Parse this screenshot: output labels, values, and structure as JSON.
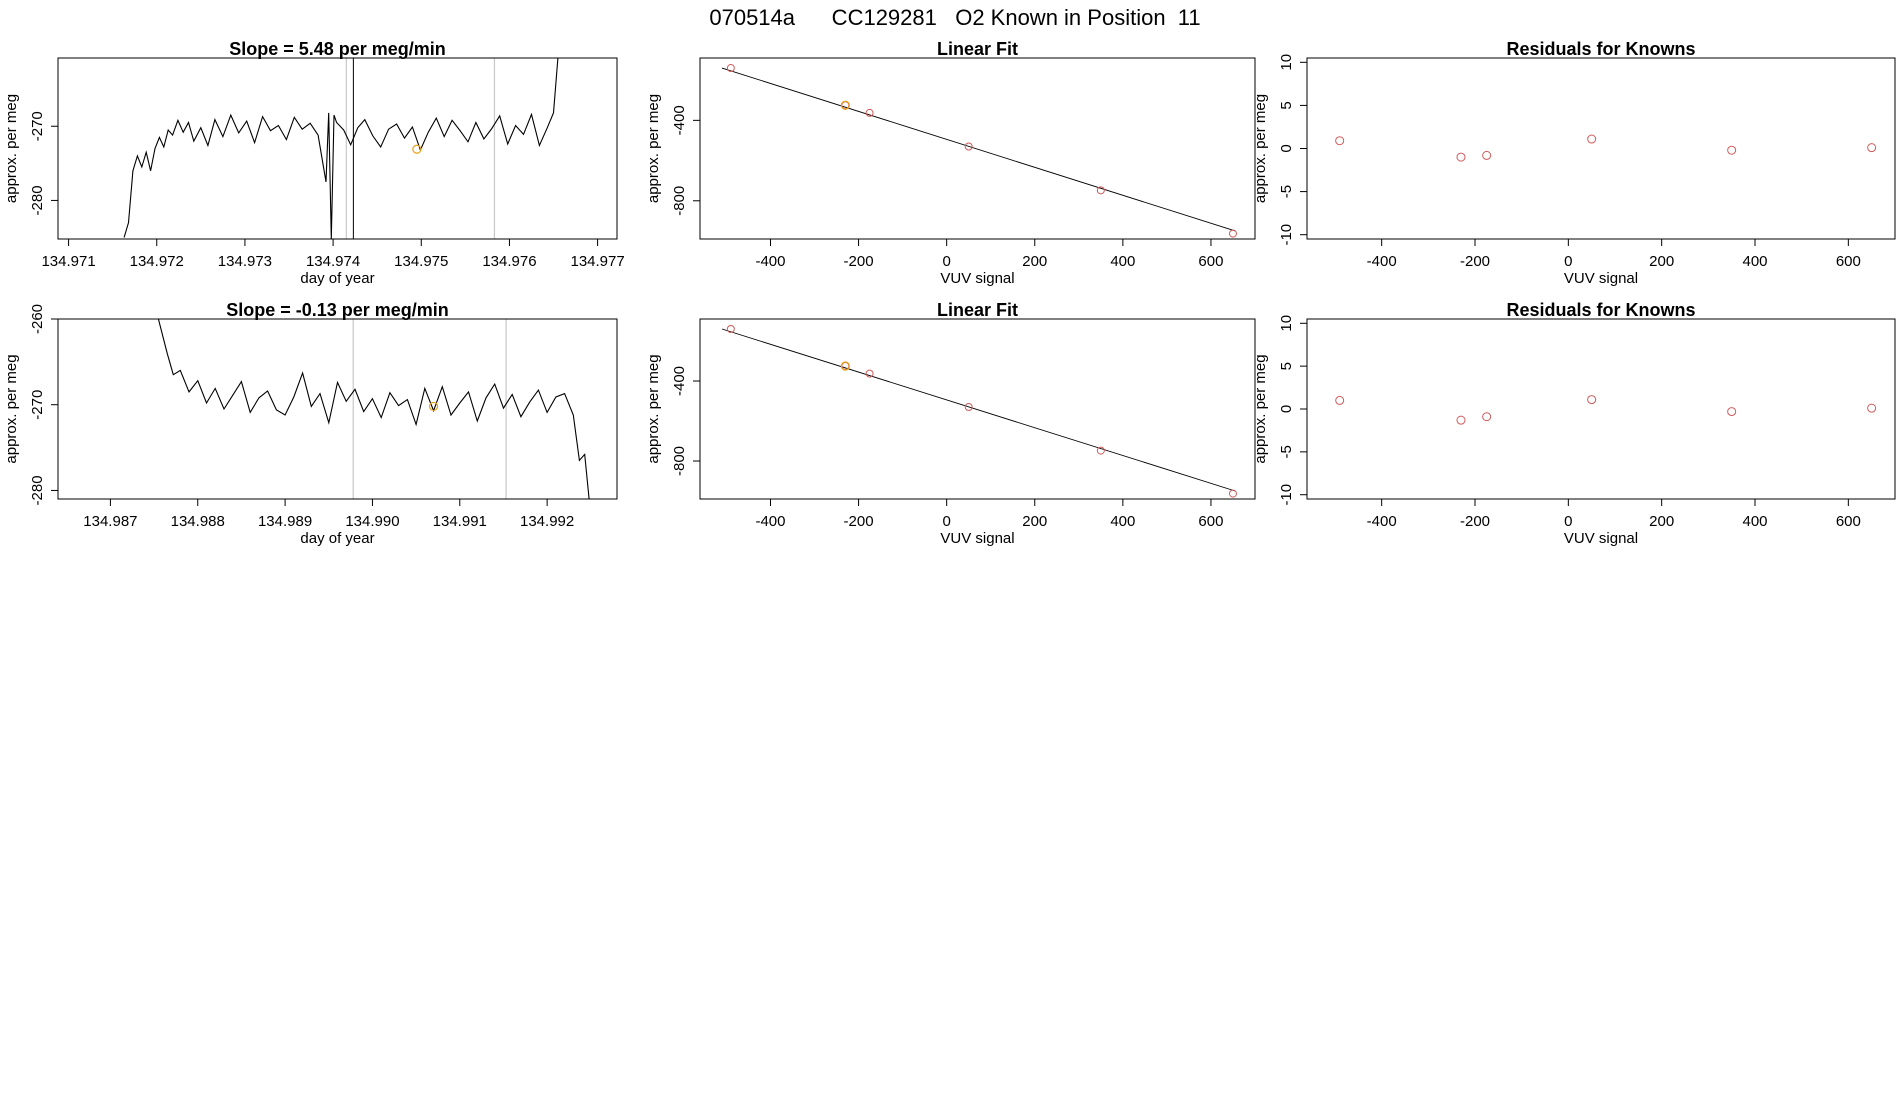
{
  "header": {
    "title": "070514a      CC129281   O2 Known in Position  11"
  },
  "colors": {
    "line": "#000000",
    "known_point": "#d05a5a",
    "sample_point": "#e8a21a",
    "marker_line": "#c8c8c8",
    "axis": "#000000"
  },
  "chart_data": [
    {
      "id": "ts1",
      "type": "line",
      "title": "Slope =  5.48  per meg/min",
      "xlabel": "day of year",
      "ylabel": "approx. per meg",
      "xlim": [
        134.97088,
        134.97722
      ],
      "ylim": [
        -285.2,
        -260.8
      ],
      "xticks": [
        134.971,
        134.972,
        134.973,
        134.974,
        134.975,
        134.976,
        134.977
      ],
      "xtick_labels": [
        "134.971",
        "134.972",
        "134.973",
        "134.974",
        "134.975",
        "134.976",
        "134.977"
      ],
      "yticks": [
        -270,
        -280
      ],
      "ytick_labels": [
        "-270",
        "-280"
      ],
      "series": [
        {
          "name": "signal",
          "x": [
            134.97163,
            134.97168,
            134.97173,
            134.97178,
            134.97183,
            134.97188,
            134.97193,
            134.97198,
            134.97203,
            134.97208,
            134.97213,
            134.97218,
            134.97224,
            134.9723,
            134.97236,
            134.97242,
            134.9725,
            134.97258,
            134.97266,
            134.97275,
            134.97284,
            134.97293,
            134.97302,
            134.97311,
            134.9732,
            134.97329,
            134.97338,
            134.97347,
            134.97356,
            134.97365,
            134.97374,
            134.97383,
            134.97392,
            134.97395,
            134.97398,
            134.97401,
            134.97404,
            134.97412,
            134.9742,
            134.97428,
            134.97436,
            134.97445,
            134.97454,
            134.97463,
            134.97472,
            134.97481,
            134.9749,
            134.97499,
            134.97508,
            134.97517,
            134.97526,
            134.97535,
            134.97544,
            134.97553,
            134.97562,
            134.97571,
            134.9758,
            134.97589,
            134.97598,
            134.97607,
            134.97616,
            134.97625,
            134.97634,
            134.97643,
            134.9765,
            134.97655
          ],
          "y": [
            -285,
            -283,
            -276,
            -274,
            -275.5,
            -273.5,
            -276,
            -273,
            -271.5,
            -272.8,
            -270.5,
            -271.2,
            -269.2,
            -270.8,
            -269.5,
            -272,
            -270.2,
            -272.6,
            -269.1,
            -271.4,
            -268.5,
            -270.9,
            -269.3,
            -272.2,
            -268.7,
            -270.6,
            -269.9,
            -271.8,
            -268.8,
            -270.4,
            -269.6,
            -271.2,
            -277.5,
            -268.2,
            -285.2,
            -268.5,
            -269.5,
            -270.5,
            -272.5,
            -270.2,
            -269.1,
            -271.3,
            -272.8,
            -270.4,
            -269.7,
            -271.6,
            -270.1,
            -273.2,
            -270.8,
            -268.9,
            -271.4,
            -269.2,
            -270.6,
            -272.1,
            -269.5,
            -271.7,
            -270.3,
            -268.6,
            -272.4,
            -269.9,
            -271.1,
            -268.4,
            -272.6,
            -270.2,
            -268.2,
            -260.8
          ]
        }
      ],
      "sample_points": {
        "x": [
          134.97495
        ],
        "y": [
          -273.1
        ]
      },
      "vlines_gray": [
        134.97415,
        134.97583
      ],
      "vlines_black": [
        134.97423
      ],
      "points": []
    },
    {
      "id": "fit1",
      "type": "scatter",
      "title": "Linear Fit",
      "xlabel": "VUV signal",
      "ylabel": "approx. per meg",
      "xlim": [
        -560,
        700
      ],
      "ylim": [
        -990,
        -90
      ],
      "xticks": [
        -400,
        -200,
        0,
        200,
        400,
        600
      ],
      "xtick_labels": [
        "-400",
        "-200",
        "0",
        "200",
        "400",
        "600"
      ],
      "yticks": [
        -400,
        -800
      ],
      "ytick_labels": [
        "-400",
        "-800"
      ],
      "fit_line": {
        "x": [
          -510,
          655
        ],
        "y": [
          -140,
          -950
        ]
      },
      "known_points": {
        "x": [
          -490,
          -230,
          -175,
          50,
          350,
          650
        ],
        "y": [
          -140,
          -325,
          -363,
          -530,
          -748,
          -963
        ]
      },
      "sample_points": {
        "x": [
          -230
        ],
        "y": [
          -325
        ]
      },
      "points": []
    },
    {
      "id": "res1",
      "type": "scatter",
      "title": "Residuals for Knowns",
      "xlabel": "VUV signal",
      "ylabel": "approx. per meg",
      "xlim": [
        -560,
        700
      ],
      "ylim": [
        -10.5,
        10.5
      ],
      "xticks": [
        -400,
        -200,
        0,
        200,
        400,
        600
      ],
      "xtick_labels": [
        "-400",
        "-200",
        "0",
        "200",
        "400",
        "600"
      ],
      "yticks": [
        10,
        5,
        0,
        -5,
        -10
      ],
      "ytick_labels": [
        "10",
        "5",
        "0",
        "-5",
        "-10"
      ],
      "points": {
        "x": [
          -490,
          -230,
          -175,
          50,
          350,
          650
        ],
        "y": [
          0.9,
          -1.0,
          -0.8,
          1.1,
          -0.2,
          0.1
        ]
      }
    },
    {
      "id": "ts2",
      "type": "line",
      "title": "Slope =  -0.13  per meg/min",
      "xlabel": "day of year",
      "ylabel": "approx. per meg",
      "xlim": [
        134.9864,
        134.9928
      ],
      "ylim": [
        -281.0,
        -260.0
      ],
      "xticks": [
        134.987,
        134.988,
        134.989,
        134.99,
        134.991,
        134.992
      ],
      "xtick_labels": [
        "134.987",
        "134.988",
        "134.989",
        "134.990",
        "134.991",
        "134.992"
      ],
      "yticks": [
        -260,
        -270,
        -280
      ],
      "ytick_labels": [
        "-260",
        "-270",
        "-280"
      ],
      "series": [
        {
          "name": "signal",
          "x": [
            134.98755,
            134.98765,
            134.98772,
            134.9878,
            134.9879,
            134.988,
            134.9881,
            134.9882,
            134.9883,
            134.9884,
            134.9885,
            134.9886,
            134.9887,
            134.9888,
            134.9889,
            134.989,
            134.9891,
            134.9892,
            134.9893,
            134.9894,
            134.9895,
            134.9896,
            134.9897,
            134.9898,
            134.9899,
            134.99,
            134.9901,
            134.9902,
            134.9903,
            134.9904,
            134.9905,
            134.9906,
            134.9907,
            134.9908,
            134.9909,
            134.991,
            134.9911,
            134.9912,
            134.9913,
            134.9914,
            134.9915,
            134.9916,
            134.9917,
            134.9918,
            134.9919,
            134.992,
            134.9921,
            134.9922,
            134.9923,
            134.99237,
            134.99243,
            134.99248
          ],
          "y": [
            -260,
            -264,
            -266.5,
            -266,
            -268.5,
            -267.2,
            -269.8,
            -268.1,
            -270.5,
            -268.9,
            -267.3,
            -270.9,
            -269.2,
            -268.4,
            -270.6,
            -271.2,
            -269.1,
            -266.3,
            -270.2,
            -268.7,
            -272.1,
            -267.4,
            -269.6,
            -268.2,
            -270.8,
            -269.3,
            -271.5,
            -268.6,
            -270.1,
            -269.4,
            -272.3,
            -268.1,
            -270.7,
            -267.9,
            -271.2,
            -269.8,
            -268.5,
            -271.9,
            -269.2,
            -267.6,
            -270.4,
            -268.8,
            -271.4,
            -269.7,
            -268.3,
            -270.9,
            -269.1,
            -268.7,
            -271.2,
            -276.5,
            -275.8,
            -281.0
          ]
        }
      ],
      "sample_points": {
        "x": [
          134.9907
        ],
        "y": [
          -270.2
        ]
      },
      "vlines_gray": [
        134.98978,
        134.99153
      ],
      "vlines_black": [],
      "points": []
    },
    {
      "id": "fit2",
      "type": "scatter",
      "title": "Linear Fit",
      "xlabel": "VUV signal",
      "ylabel": "approx. per meg",
      "xlim": [
        -560,
        700
      ],
      "ylim": [
        -990,
        -90
      ],
      "xticks": [
        -400,
        -200,
        0,
        200,
        400,
        600
      ],
      "xtick_labels": [
        "-400",
        "-200",
        "0",
        "200",
        "400",
        "600"
      ],
      "yticks": [
        -400,
        -800
      ],
      "ytick_labels": [
        "-400",
        "-800"
      ],
      "fit_line": {
        "x": [
          -510,
          655
        ],
        "y": [
          -140,
          -950
        ]
      },
      "known_points": {
        "x": [
          -490,
          -230,
          -175,
          50,
          350,
          650
        ],
        "y": [
          -140,
          -325,
          -363,
          -530,
          -748,
          -963
        ]
      },
      "sample_points": {
        "x": [
          -230
        ],
        "y": [
          -325
        ]
      },
      "points": []
    },
    {
      "id": "res2",
      "type": "scatter",
      "title": "Residuals for Knowns",
      "xlabel": "VUV signal",
      "ylabel": "approx. per meg",
      "xlim": [
        -560,
        700
      ],
      "ylim": [
        -10.5,
        10.5
      ],
      "xticks": [
        -400,
        -200,
        0,
        200,
        400,
        600
      ],
      "xtick_labels": [
        "-400",
        "-200",
        "0",
        "200",
        "400",
        "600"
      ],
      "yticks": [
        10,
        5,
        0,
        -5,
        -10
      ],
      "ytick_labels": [
        "10",
        "5",
        "0",
        "-5",
        "-10"
      ],
      "points": {
        "x": [
          -490,
          -230,
          -175,
          50,
          350,
          650
        ],
        "y": [
          1.0,
          -1.3,
          -0.9,
          1.1,
          -0.3,
          0.1
        ]
      }
    }
  ]
}
